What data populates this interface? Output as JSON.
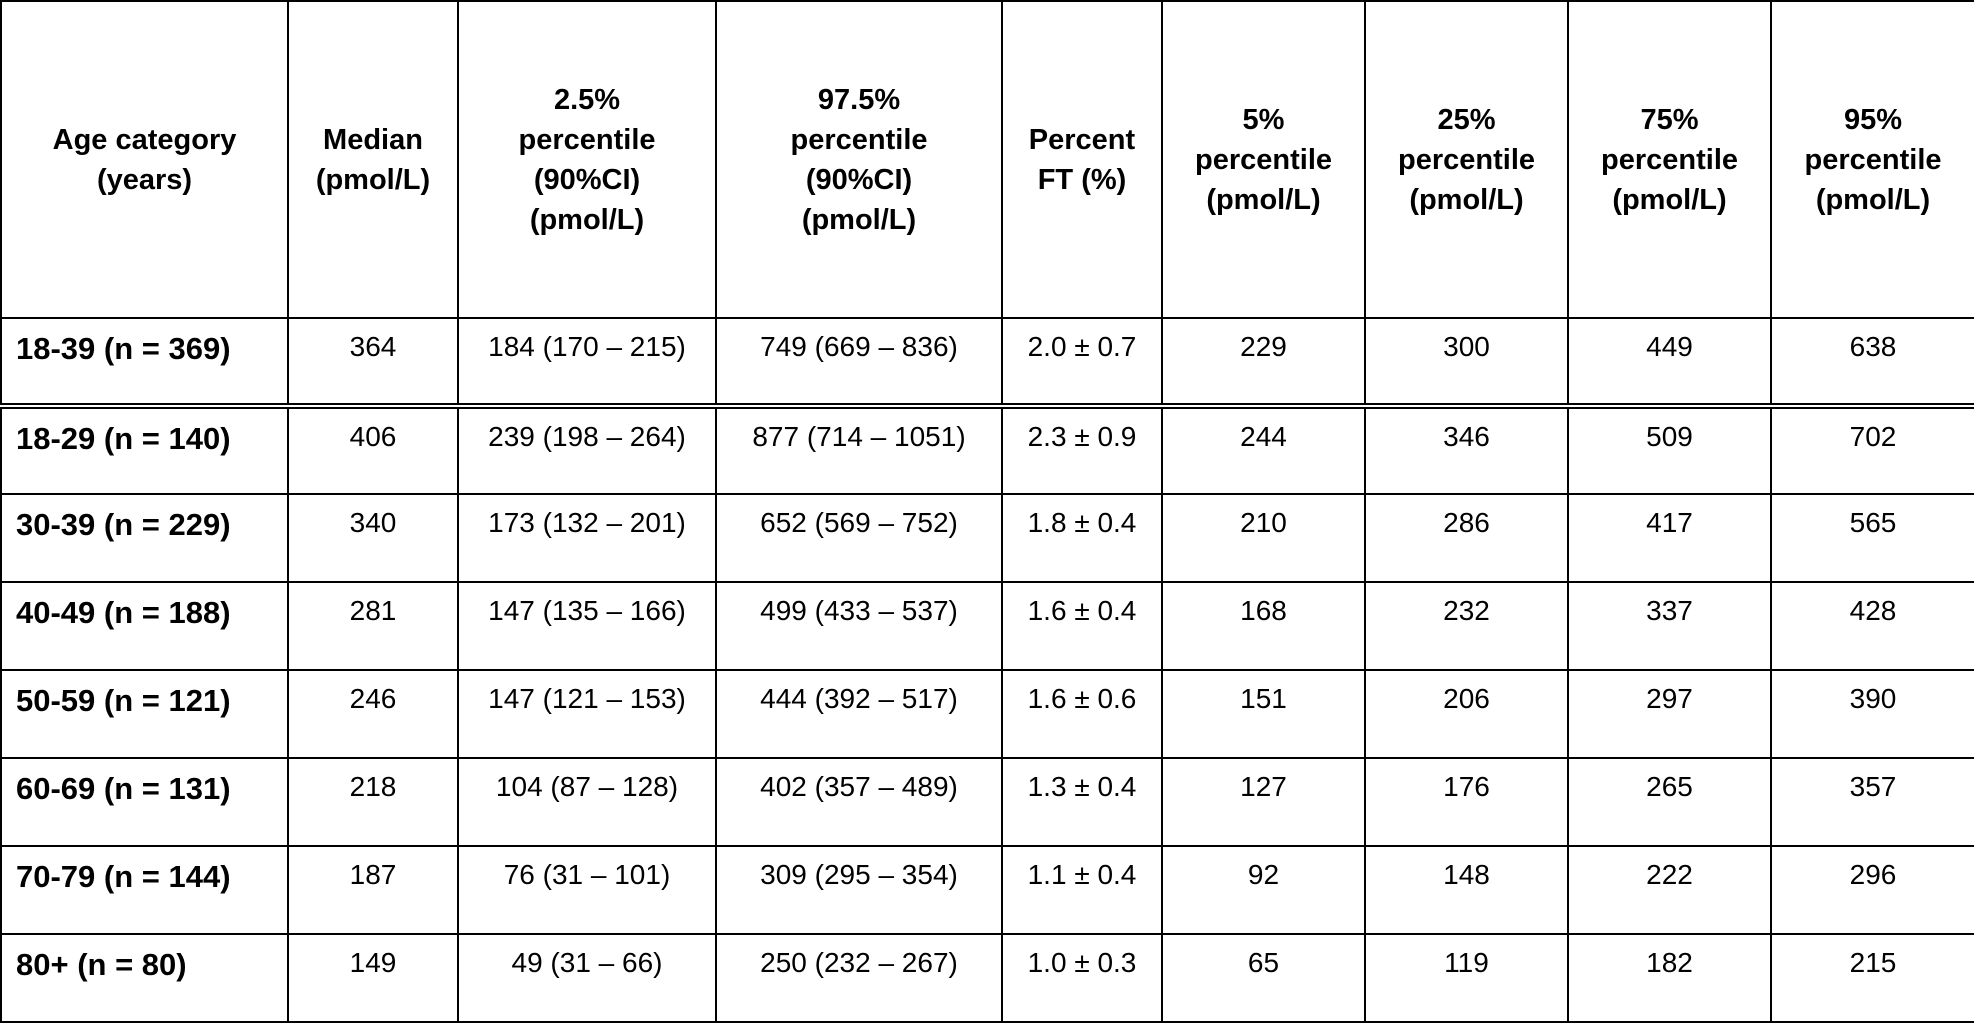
{
  "table": {
    "header": [
      [
        "Age category",
        "(years)"
      ],
      [
        "Median",
        "(pmol/L)"
      ],
      [
        "2.5%",
        "percentile",
        "(90%CI)",
        "(pmol/L)"
      ],
      [
        "97.5%",
        "percentile",
        "(90%CI)",
        "(pmol/L)"
      ],
      [
        "Percent",
        "FT (%)"
      ],
      [
        "5%",
        "percentile",
        "(pmol/L)"
      ],
      [
        "25%",
        "percentile",
        "(pmol/L)"
      ],
      [
        "75%",
        "percentile",
        "(pmol/L)"
      ],
      [
        "95%",
        "percentile",
        "(pmol/L)"
      ]
    ],
    "rows": [
      [
        "18-39 (n = 369)",
        "364",
        "184 (170 – 215)",
        "749 (669 – 836)",
        "2.0 ± 0.7",
        "229",
        "300",
        "449",
        "638"
      ],
      [
        "18-29 (n = 140)",
        "406",
        "239 (198 – 264)",
        "877 (714 – 1051)",
        "2.3 ± 0.9",
        "244",
        "346",
        "509",
        "702"
      ],
      [
        "30-39 (n = 229)",
        "340",
        "173 (132 – 201)",
        "652 (569 – 752)",
        "1.8 ± 0.4",
        "210",
        "286",
        "417",
        "565"
      ],
      [
        "40-49 (n = 188)",
        "281",
        "147 (135 – 166)",
        "499 (433 – 537)",
        "1.6 ± 0.4",
        "168",
        "232",
        "337",
        "428"
      ],
      [
        "50-59 (n = 121)",
        "246",
        "147 (121 – 153)",
        "444 (392 – 517)",
        "1.6 ± 0.6",
        "151",
        "206",
        "297",
        "390"
      ],
      [
        "60-69 (n = 131)",
        "218",
        "104 (87 – 128)",
        "402 (357 – 489)",
        "1.3 ± 0.4",
        "127",
        "176",
        "265",
        "357"
      ],
      [
        "70-79 (n = 144)",
        "187",
        "76 (31 – 101)",
        "309 (295 – 354)",
        "1.1 ± 0.4",
        "92",
        "148",
        "222",
        "296"
      ],
      [
        "80+ (n = 80)",
        "149",
        "49 (31 – 66)",
        "250 (232 – 267)",
        "1.0 ± 0.3",
        "65",
        "119",
        "182",
        "215"
      ]
    ]
  }
}
